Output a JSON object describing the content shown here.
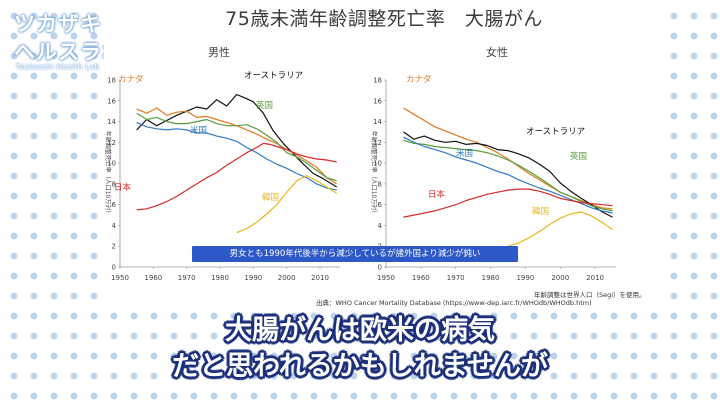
{
  "logo": {
    "line1": "ツカザキ",
    "line2": "ヘルスラボ",
    "sub": "Tsukazaki Health Lab"
  },
  "slide": {
    "title": "75歳未満年齢調整死亡率　大腸がん",
    "banner": "男女とも1990年代後半から減少しているが諸外国より減少が鈍い",
    "note": "年齢調整は世界人口（Segi）を使用。",
    "source": "出典：WHO Cancer Mortality Database (https://www-dep.iarc.fr/WHOdb/WHOdb.htm)"
  },
  "caption": {
    "line1": "大腸がんは欧米の病気",
    "line2": "だと思われるかもしれませんが"
  },
  "chart_data": [
    {
      "type": "line",
      "title": "男性",
      "ylabel": "年齢調整死亡率（人口10万対）",
      "xlim": [
        1950,
        2016
      ],
      "ylim": [
        0,
        18
      ],
      "xticks": [
        1950,
        1960,
        1970,
        1980,
        1990,
        2000,
        2010
      ],
      "yticks": [
        0,
        2,
        4,
        6,
        8,
        10,
        12,
        14,
        16,
        18
      ],
      "grid": false,
      "series": [
        {
          "name": "オーストラリア",
          "color": "#111111",
          "x": [
            1955,
            1958,
            1961,
            1964,
            1967,
            1970,
            1973,
            1976,
            1979,
            1982,
            1985,
            1988,
            1990,
            1993,
            1996,
            1999,
            2002,
            2005,
            2008,
            2011,
            2014,
            2015
          ],
          "y": [
            13.2,
            14.2,
            13.6,
            14.1,
            14.6,
            15.0,
            15.4,
            15.2,
            16.1,
            15.5,
            16.6,
            16.2,
            15.9,
            14.8,
            13.1,
            11.9,
            10.9,
            9.9,
            9.0,
            8.5,
            7.9,
            7.7
          ]
        },
        {
          "name": "カナダ",
          "color": "#e07a1f",
          "x": [
            1955,
            1958,
            1961,
            1964,
            1967,
            1970,
            1973,
            1976,
            1979,
            1982,
            1985,
            1988,
            1991,
            1994,
            1997,
            2000,
            2003,
            2006,
            2009,
            2012,
            2015
          ],
          "y": [
            15.2,
            14.8,
            15.3,
            14.6,
            14.9,
            15.0,
            14.4,
            14.5,
            14.2,
            13.9,
            13.6,
            13.2,
            12.8,
            12.3,
            11.9,
            11.3,
            10.8,
            10.2,
            9.6,
            8.6,
            8.0
          ]
        },
        {
          "name": "英国",
          "color": "#5a9e3a",
          "x": [
            1955,
            1958,
            1961,
            1964,
            1967,
            1970,
            1973,
            1976,
            1979,
            1982,
            1985,
            1988,
            1991,
            1994,
            1997,
            2000,
            2003,
            2006,
            2009,
            2012,
            2015
          ],
          "y": [
            14.8,
            14.2,
            14.4,
            14.0,
            13.8,
            13.8,
            14.0,
            14.2,
            13.8,
            13.6,
            13.6,
            13.7,
            13.3,
            12.7,
            12.0,
            11.0,
            10.6,
            10.0,
            9.3,
            8.6,
            8.3
          ]
        },
        {
          "name": "米国",
          "color": "#2e7bc4",
          "x": [
            1955,
            1958,
            1961,
            1964,
            1967,
            1970,
            1973,
            1976,
            1979,
            1982,
            1985,
            1988,
            1991,
            1994,
            1997,
            2000,
            2003,
            2006,
            2009,
            2012,
            2015
          ],
          "y": [
            13.9,
            13.5,
            13.3,
            13.2,
            13.3,
            13.2,
            12.9,
            12.9,
            12.6,
            12.4,
            12.1,
            11.5,
            11.0,
            10.4,
            9.9,
            9.5,
            9.0,
            8.6,
            8.0,
            7.6,
            7.4
          ]
        },
        {
          "name": "日本",
          "color": "#d42a2a",
          "x": [
            1955,
            1958,
            1961,
            1964,
            1967,
            1970,
            1973,
            1976,
            1979,
            1982,
            1985,
            1988,
            1991,
            1993,
            1995,
            1997,
            2000,
            2003,
            2006,
            2009,
            2012,
            2015
          ],
          "y": [
            5.5,
            5.6,
            5.9,
            6.3,
            6.8,
            7.4,
            8.0,
            8.6,
            9.1,
            9.8,
            10.4,
            11.0,
            11.5,
            11.9,
            11.8,
            11.6,
            11.3,
            10.9,
            10.6,
            10.4,
            10.3,
            10.1
          ]
        },
        {
          "name": "韓国",
          "color": "#e8b820",
          "x": [
            1985,
            1988,
            1991,
            1994,
            1997,
            2000,
            2003,
            2006,
            2009,
            2012,
            2015
          ],
          "y": [
            3.3,
            3.7,
            4.3,
            5.1,
            6.0,
            7.2,
            8.3,
            8.8,
            8.3,
            7.7,
            7.1
          ]
        }
      ]
    },
    {
      "type": "line",
      "title": "女性",
      "ylabel": "年齢調整死亡率（人口10万対）",
      "xlim": [
        1950,
        2016
      ],
      "ylim": [
        0,
        18
      ],
      "xticks": [
        1950,
        1960,
        1970,
        1980,
        1990,
        2000,
        2010
      ],
      "yticks": [
        0,
        2,
        4,
        6,
        8,
        10,
        12,
        14,
        16,
        18
      ],
      "grid": false,
      "series": [
        {
          "name": "カナダ",
          "color": "#e07a1f",
          "x": [
            1955,
            1958,
            1961,
            1964,
            1967,
            1970,
            1973,
            1976,
            1979,
            1982,
            1985,
            1988,
            1991,
            1994,
            1997,
            2000,
            2003,
            2006,
            2009,
            2012,
            2015
          ],
          "y": [
            15.3,
            14.7,
            14.1,
            13.5,
            13.1,
            12.7,
            12.3,
            12.0,
            11.5,
            11.0,
            10.4,
            9.7,
            9.0,
            8.4,
            7.8,
            7.2,
            6.8,
            6.4,
            6.0,
            5.7,
            5.6
          ]
        },
        {
          "name": "オーストラリア",
          "color": "#111111",
          "x": [
            1955,
            1958,
            1961,
            1964,
            1967,
            1970,
            1973,
            1976,
            1979,
            1982,
            1985,
            1988,
            1991,
            1994,
            1997,
            2000,
            2003,
            2006,
            2009,
            2012,
            2015
          ],
          "y": [
            13.0,
            12.3,
            12.6,
            12.2,
            12.0,
            12.1,
            11.8,
            11.9,
            11.7,
            11.3,
            11.2,
            10.9,
            10.5,
            9.9,
            9.2,
            8.1,
            7.3,
            6.6,
            6.0,
            5.3,
            4.8
          ]
        },
        {
          "name": "英国",
          "color": "#5a9e3a",
          "x": [
            1955,
            1958,
            1961,
            1964,
            1967,
            1970,
            1973,
            1976,
            1979,
            1982,
            1985,
            1988,
            1991,
            1994,
            1997,
            2000,
            2003,
            2006,
            2009,
            2012,
            2015
          ],
          "y": [
            12.2,
            11.9,
            11.8,
            11.6,
            11.5,
            11.4,
            11.3,
            11.2,
            11.0,
            10.7,
            10.3,
            9.8,
            9.2,
            8.6,
            7.9,
            7.2,
            6.8,
            6.3,
            5.9,
            5.6,
            5.4
          ]
        },
        {
          "name": "米国",
          "color": "#2e7bc4",
          "x": [
            1955,
            1958,
            1961,
            1964,
            1967,
            1970,
            1973,
            1976,
            1979,
            1982,
            1985,
            1988,
            1991,
            1994,
            1997,
            2000,
            2003,
            2006,
            2009,
            2012,
            2015
          ],
          "y": [
            12.5,
            12.0,
            11.6,
            11.3,
            11.0,
            10.6,
            10.3,
            10.0,
            9.6,
            9.2,
            8.9,
            8.4,
            8.0,
            7.6,
            7.3,
            6.9,
            6.5,
            6.1,
            5.7,
            5.4,
            5.2
          ]
        },
        {
          "name": "日本",
          "color": "#d42a2a",
          "x": [
            1955,
            1958,
            1961,
            1964,
            1967,
            1970,
            1973,
            1976,
            1979,
            1982,
            1985,
            1988,
            1991,
            1994,
            1997,
            2000,
            2003,
            2006,
            2009,
            2012,
            2015
          ],
          "y": [
            4.8,
            5.0,
            5.2,
            5.4,
            5.7,
            6.0,
            6.4,
            6.7,
            7.0,
            7.2,
            7.4,
            7.5,
            7.5,
            7.3,
            7.0,
            6.6,
            6.4,
            6.2,
            6.1,
            6.0,
            5.9
          ]
        },
        {
          "name": "韓国",
          "color": "#e8b820",
          "x": [
            1985,
            1988,
            1991,
            1994,
            1997,
            2000,
            2003,
            2006,
            2009,
            2012,
            2015
          ],
          "y": [
            2.0,
            2.3,
            2.8,
            3.4,
            4.1,
            4.7,
            5.1,
            5.3,
            4.9,
            4.3,
            3.6
          ]
        }
      ]
    }
  ]
}
